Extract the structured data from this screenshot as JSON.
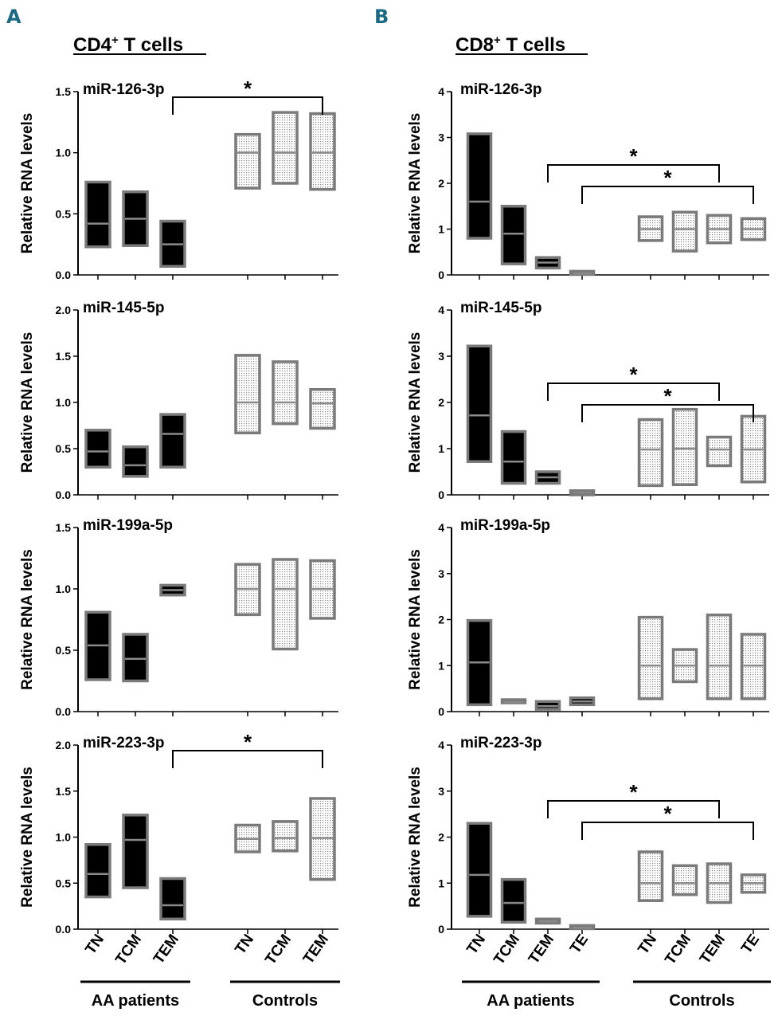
{
  "panels": {
    "A": {
      "letter": "A",
      "title": "CD4",
      "title_sup": "+",
      "title_suffix": " T cells",
      "ylabel": "Relative RNA levels",
      "categories": [
        "TN",
        "TCM",
        "TEM",
        "TN",
        "TCM",
        "TEM"
      ],
      "groups": [
        {
          "label": "AA patients",
          "start": 0,
          "end": 2
        },
        {
          "label": "Controls",
          "start": 3,
          "end": 5
        }
      ]
    },
    "B": {
      "letter": "B",
      "title": "CD8",
      "title_sup": "+",
      "title_suffix": " T cells",
      "ylabel": "Relative RNA levels",
      "categories": [
        "TN",
        "TCM",
        "TEM",
        "TE",
        "TN",
        "TCM",
        "TEM",
        "TE"
      ],
      "groups": [
        {
          "label": "AA patients",
          "start": 0,
          "end": 3
        },
        {
          "label": "Controls",
          "start": 4,
          "end": 7
        }
      ]
    }
  },
  "chart_data": [
    {
      "type": "floating-bar",
      "panel": "A",
      "title": "miR-126-3p",
      "ylabel": "Relative RNA levels",
      "ylim": [
        0,
        1.5
      ],
      "yticks": [
        "0.0",
        "0.5",
        "1.0",
        "1.5"
      ],
      "yticks_values": [
        0,
        0.5,
        1.0,
        1.5
      ],
      "series": [
        {
          "name": "AA patients",
          "bars": [
            {
              "cat": "TN",
              "min": 0.23,
              "mean": 0.42,
              "max": 0.76
            },
            {
              "cat": "TCM",
              "min": 0.24,
              "mean": 0.46,
              "max": 0.68
            },
            {
              "cat": "TEM",
              "min": 0.07,
              "mean": 0.25,
              "max": 0.44
            }
          ]
        },
        {
          "name": "Controls",
          "bars": [
            {
              "cat": "TN",
              "min": 0.71,
              "mean": 1.0,
              "max": 1.15
            },
            {
              "cat": "TCM",
              "min": 0.75,
              "mean": 1.0,
              "max": 1.33
            },
            {
              "cat": "TEM",
              "min": 0.7,
              "mean": 1.0,
              "max": 1.32
            }
          ]
        }
      ],
      "significance": [
        {
          "from": 2,
          "to": 5,
          "label": "*"
        }
      ]
    },
    {
      "type": "floating-bar",
      "panel": "A",
      "title": "miR-145-5p",
      "ylabel": "Relative RNA levels",
      "ylim": [
        0,
        2.0
      ],
      "yticks": [
        "0.0",
        "0.5",
        "1.0",
        "1.5",
        "2.0"
      ],
      "yticks_values": [
        0,
        0.5,
        1.0,
        1.5,
        2.0
      ],
      "series": [
        {
          "name": "AA patients",
          "bars": [
            {
              "cat": "TN",
              "min": 0.3,
              "mean": 0.47,
              "max": 0.7
            },
            {
              "cat": "TCM",
              "min": 0.2,
              "mean": 0.32,
              "max": 0.52
            },
            {
              "cat": "TEM",
              "min": 0.3,
              "mean": 0.66,
              "max": 0.87
            }
          ]
        },
        {
          "name": "Controls",
          "bars": [
            {
              "cat": "TN",
              "min": 0.67,
              "mean": 1.0,
              "max": 1.51
            },
            {
              "cat": "TCM",
              "min": 0.77,
              "mean": 1.0,
              "max": 1.44
            },
            {
              "cat": "TEM",
              "min": 0.72,
              "mean": 0.99,
              "max": 1.14
            }
          ]
        }
      ],
      "significance": []
    },
    {
      "type": "floating-bar",
      "panel": "A",
      "title": "miR-199a-5p",
      "ylabel": "Relative RNA levels",
      "ylim": [
        0,
        1.5
      ],
      "yticks": [
        "0.0",
        "0.5",
        "1.0",
        "1.5"
      ],
      "yticks_values": [
        0,
        0.5,
        1.0,
        1.5
      ],
      "series": [
        {
          "name": "AA patients",
          "bars": [
            {
              "cat": "TN",
              "min": 0.26,
              "mean": 0.54,
              "max": 0.81
            },
            {
              "cat": "TCM",
              "min": 0.25,
              "mean": 0.43,
              "max": 0.63
            },
            {
              "cat": "TEM",
              "min": 0.95,
              "mean": 0.99,
              "max": 1.03
            }
          ]
        },
        {
          "name": "Controls",
          "bars": [
            {
              "cat": "TN",
              "min": 0.79,
              "mean": 1.0,
              "max": 1.2
            },
            {
              "cat": "TCM",
              "min": 0.51,
              "mean": 1.0,
              "max": 1.24
            },
            {
              "cat": "TEM",
              "min": 0.76,
              "mean": 1.0,
              "max": 1.23
            }
          ]
        }
      ],
      "significance": []
    },
    {
      "type": "floating-bar",
      "panel": "A",
      "title": "miR-223-3p",
      "ylabel": "Relative RNA levels",
      "ylim": [
        0,
        2.0
      ],
      "yticks": [
        "0.0",
        "0.5",
        "1.0",
        "1.5",
        "2.0"
      ],
      "yticks_values": [
        0,
        0.5,
        1.0,
        1.5,
        2.0
      ],
      "series": [
        {
          "name": "AA patients",
          "bars": [
            {
              "cat": "TN",
              "min": 0.35,
              "mean": 0.6,
              "max": 0.92
            },
            {
              "cat": "TCM",
              "min": 0.45,
              "mean": 0.97,
              "max": 1.24
            },
            {
              "cat": "TEM",
              "min": 0.11,
              "mean": 0.26,
              "max": 0.55
            }
          ]
        },
        {
          "name": "Controls",
          "bars": [
            {
              "cat": "TN",
              "min": 0.84,
              "mean": 0.98,
              "max": 1.13
            },
            {
              "cat": "TCM",
              "min": 0.85,
              "mean": 0.99,
              "max": 1.17
            },
            {
              "cat": "TEM",
              "min": 0.54,
              "mean": 0.99,
              "max": 1.42
            }
          ]
        }
      ],
      "significance": [
        {
          "from": 2,
          "to": 5,
          "label": "*"
        }
      ]
    },
    {
      "type": "floating-bar",
      "panel": "B",
      "title": "miR-126-3p",
      "ylabel": "Relative RNA levels",
      "ylim": [
        0,
        4
      ],
      "yticks": [
        "0",
        "1",
        "2",
        "3",
        "4"
      ],
      "yticks_values": [
        0,
        1,
        2,
        3,
        4
      ],
      "series": [
        {
          "name": "AA patients",
          "bars": [
            {
              "cat": "TN",
              "min": 0.8,
              "mean": 1.6,
              "max": 3.08
            },
            {
              "cat": "TCM",
              "min": 0.24,
              "mean": 0.9,
              "max": 1.5
            },
            {
              "cat": "TEM",
              "min": 0.15,
              "mean": 0.27,
              "max": 0.38
            },
            {
              "cat": "TE",
              "min": 0.01,
              "mean": 0.03,
              "max": 0.06
            }
          ]
        },
        {
          "name": "Controls",
          "bars": [
            {
              "cat": "TN",
              "min": 0.75,
              "mean": 1.0,
              "max": 1.27
            },
            {
              "cat": "TCM",
              "min": 0.52,
              "mean": 1.0,
              "max": 1.37
            },
            {
              "cat": "TEM",
              "min": 0.7,
              "mean": 1.0,
              "max": 1.3
            },
            {
              "cat": "TE",
              "min": 0.77,
              "mean": 1.0,
              "max": 1.23
            }
          ]
        }
      ],
      "significance": [
        {
          "from": 2,
          "to": 6,
          "label": "*"
        },
        {
          "from": 3,
          "to": 7,
          "label": "*"
        }
      ]
    },
    {
      "type": "floating-bar",
      "panel": "B",
      "title": "miR-145-5p",
      "ylabel": "Relative RNA levels",
      "ylim": [
        0,
        4
      ],
      "yticks": [
        "0",
        "1",
        "2",
        "3",
        "4"
      ],
      "yticks_values": [
        0,
        1,
        2,
        3,
        4
      ],
      "series": [
        {
          "name": "AA patients",
          "bars": [
            {
              "cat": "TN",
              "min": 0.72,
              "mean": 1.72,
              "max": 3.22
            },
            {
              "cat": "TCM",
              "min": 0.25,
              "mean": 0.72,
              "max": 1.37
            },
            {
              "cat": "TEM",
              "min": 0.25,
              "mean": 0.38,
              "max": 0.5
            },
            {
              "cat": "TE",
              "min": 0.0,
              "mean": 0.05,
              "max": 0.09
            }
          ]
        },
        {
          "name": "Controls",
          "bars": [
            {
              "cat": "TN",
              "min": 0.2,
              "mean": 0.98,
              "max": 1.63
            },
            {
              "cat": "TCM",
              "min": 0.22,
              "mean": 1.0,
              "max": 1.85
            },
            {
              "cat": "TEM",
              "min": 0.63,
              "mean": 0.98,
              "max": 1.25
            },
            {
              "cat": "TE",
              "min": 0.28,
              "mean": 0.98,
              "max": 1.7
            }
          ]
        }
      ],
      "significance": [
        {
          "from": 2,
          "to": 6,
          "label": "*"
        },
        {
          "from": 3,
          "to": 7,
          "label": "*"
        }
      ]
    },
    {
      "type": "floating-bar",
      "panel": "B",
      "title": "miR-199a-5p",
      "ylabel": "Relative RNA levels",
      "ylim": [
        0,
        4
      ],
      "yticks": [
        "0",
        "1",
        "2",
        "3",
        "4"
      ],
      "yticks_values": [
        0,
        1,
        2,
        3,
        4
      ],
      "series": [
        {
          "name": "AA patients",
          "bars": [
            {
              "cat": "TN",
              "min": 0.15,
              "mean": 1.07,
              "max": 1.98
            },
            {
              "cat": "TCM",
              "min": 0.19,
              "mean": 0.21,
              "max": 0.24
            },
            {
              "cat": "TEM",
              "min": 0.05,
              "mean": 0.12,
              "max": 0.22
            },
            {
              "cat": "TE",
              "min": 0.15,
              "mean": 0.22,
              "max": 0.3
            }
          ]
        },
        {
          "name": "Controls",
          "bars": [
            {
              "cat": "TN",
              "min": 0.28,
              "mean": 1.0,
              "max": 2.05
            },
            {
              "cat": "TCM",
              "min": 0.65,
              "mean": 1.0,
              "max": 1.35
            },
            {
              "cat": "TEM",
              "min": 0.28,
              "mean": 1.0,
              "max": 2.1
            },
            {
              "cat": "TE",
              "min": 0.28,
              "mean": 1.0,
              "max": 1.68
            }
          ]
        }
      ],
      "significance": []
    },
    {
      "type": "floating-bar",
      "panel": "B",
      "title": "miR-223-3p",
      "ylabel": "Relative RNA levels",
      "ylim": [
        0,
        4
      ],
      "yticks": [
        "0",
        "1",
        "2",
        "3",
        "4"
      ],
      "yticks_values": [
        0,
        1,
        2,
        3,
        4
      ],
      "series": [
        {
          "name": "AA patients",
          "bars": [
            {
              "cat": "TN",
              "min": 0.28,
              "mean": 1.18,
              "max": 2.3
            },
            {
              "cat": "TCM",
              "min": 0.15,
              "mean": 0.57,
              "max": 1.08
            },
            {
              "cat": "TEM",
              "min": 0.13,
              "mean": 0.17,
              "max": 0.22
            },
            {
              "cat": "TE",
              "min": 0.01,
              "mean": 0.03,
              "max": 0.06
            }
          ]
        },
        {
          "name": "Controls",
          "bars": [
            {
              "cat": "TN",
              "min": 0.62,
              "mean": 1.0,
              "max": 1.68
            },
            {
              "cat": "TCM",
              "min": 0.75,
              "mean": 1.0,
              "max": 1.38
            },
            {
              "cat": "TEM",
              "min": 0.58,
              "mean": 1.0,
              "max": 1.42
            },
            {
              "cat": "TE",
              "min": 0.8,
              "mean": 1.0,
              "max": 1.18
            }
          ]
        }
      ],
      "significance": [
        {
          "from": 2,
          "to": 6,
          "label": "*"
        },
        {
          "from": 3,
          "to": 7,
          "label": "*"
        }
      ]
    }
  ]
}
